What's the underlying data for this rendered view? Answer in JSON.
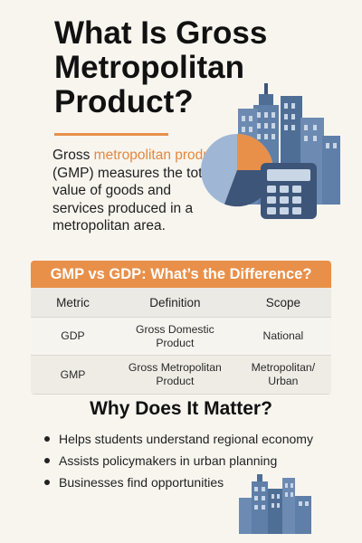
{
  "title": "What Is Gross Metropolitan Product?",
  "intro": {
    "prefix": "Gross ",
    "highlight": "metropolitan product",
    "suffix": " (GMP) measures the total value of goods and services produced in a metropolitan area."
  },
  "table": {
    "heading": "GMP vs GDP: What’s the Difference?",
    "columns": [
      "Metric",
      "Definition",
      "Scope"
    ],
    "rows": [
      [
        "GDP",
        "Gross Domestic Product",
        "National"
      ],
      [
        "GMP",
        "Gross Metropolitan Product",
        "Metropolitan/ Urban"
      ]
    ]
  },
  "why": {
    "heading": "Why Does It Matter?",
    "bullets": [
      "Helps students understand regional economy",
      "Assists policymakers in urban planning",
      "Businesses find opportunities"
    ]
  },
  "colors": {
    "accent": "#e8904a",
    "building": "#5f7fa8",
    "building_dark": "#3d5578",
    "pie_light": "#9fb6d4",
    "pie_dark": "#3d5578"
  },
  "icons": [
    "city-skyline-icon",
    "pie-chart-icon",
    "calculator-icon",
    "small-city-icon"
  ]
}
